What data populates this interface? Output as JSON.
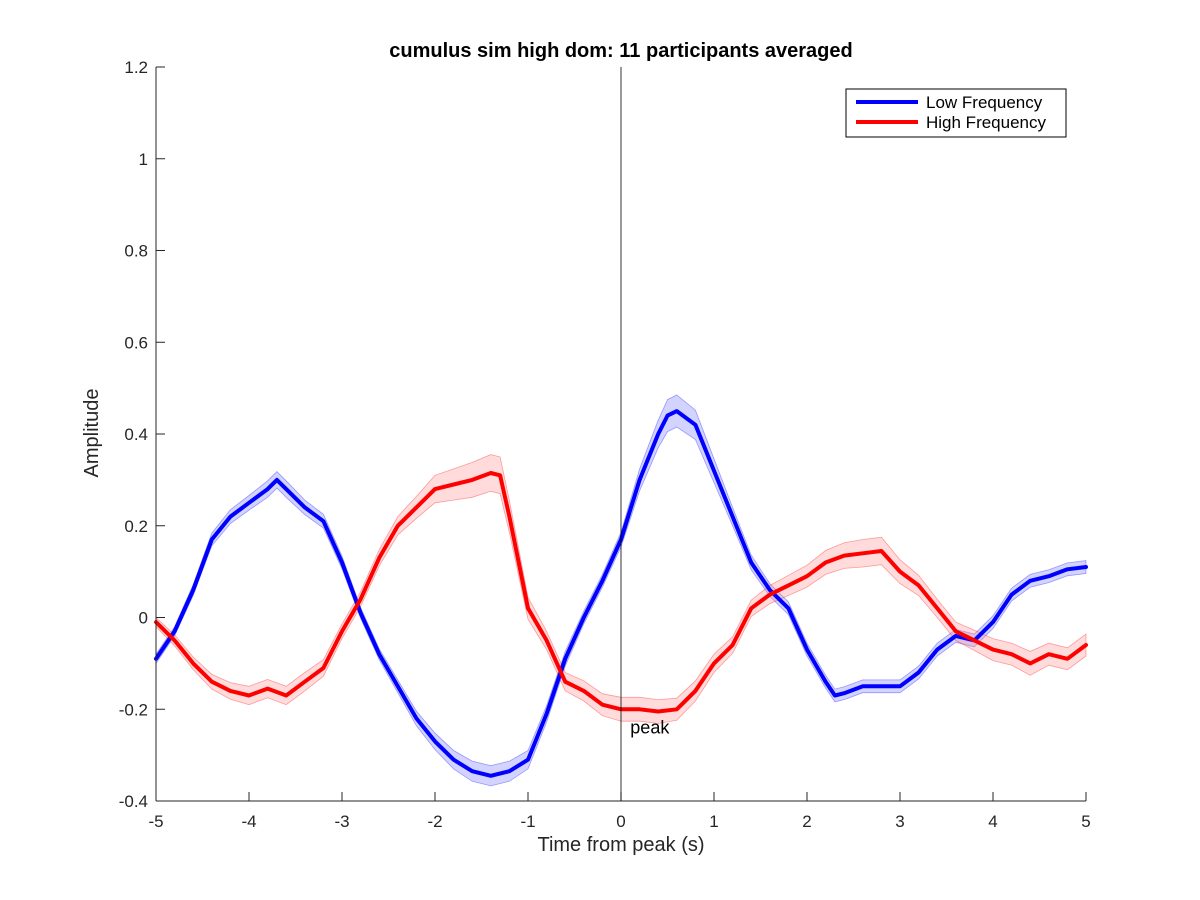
{
  "chart_data": {
    "type": "line",
    "title": "cumulus sim high dom: 11 participants averaged",
    "xlabel": "Time from peak (s)",
    "ylabel": "Amplitude",
    "xlim": [
      -5,
      5
    ],
    "ylim": [
      -0.4,
      1.2
    ],
    "xticks": [
      -5,
      -4,
      -3,
      -2,
      -1,
      0,
      1,
      2,
      3,
      4,
      5
    ],
    "yticks": [
      -0.4,
      -0.2,
      0,
      0.2,
      0.4,
      0.6,
      0.8,
      1,
      1.2
    ],
    "xtick_labels": [
      "-5",
      "-4",
      "-3",
      "-2",
      "-1",
      "0",
      "1",
      "2",
      "3",
      "4",
      "5"
    ],
    "ytick_labels": [
      "-0.4",
      "-0.2",
      "0",
      "0.2",
      "0.4",
      "0.6",
      "0.8",
      "1",
      "1.2"
    ],
    "grid": false,
    "legend_position": "top-right",
    "vline_x": 0,
    "annotation": {
      "text": "peak",
      "x": 0.1,
      "y": -0.24
    },
    "series": [
      {
        "name": "Low Frequency",
        "color": "#0000ff",
        "band_color": "#8080ff",
        "x": [
          -5,
          -4.8,
          -4.6,
          -4.4,
          -4.2,
          -4.0,
          -3.8,
          -3.7,
          -3.6,
          -3.4,
          -3.2,
          -3.0,
          -2.8,
          -2.6,
          -2.4,
          -2.2,
          -2.0,
          -1.8,
          -1.6,
          -1.4,
          -1.2,
          -1.0,
          -0.8,
          -0.6,
          -0.4,
          -0.2,
          0.0,
          0.2,
          0.4,
          0.5,
          0.6,
          0.8,
          1.0,
          1.2,
          1.4,
          1.6,
          1.8,
          2.0,
          2.2,
          2.3,
          2.4,
          2.6,
          2.8,
          3.0,
          3.2,
          3.4,
          3.6,
          3.8,
          4.0,
          4.2,
          4.4,
          4.6,
          4.8,
          5.0
        ],
        "y": [
          -0.09,
          -0.03,
          0.06,
          0.17,
          0.22,
          0.25,
          0.28,
          0.3,
          0.28,
          0.24,
          0.21,
          0.12,
          0.01,
          -0.08,
          -0.15,
          -0.22,
          -0.27,
          -0.31,
          -0.335,
          -0.345,
          -0.335,
          -0.31,
          -0.21,
          -0.09,
          0.0,
          0.08,
          0.17,
          0.3,
          0.4,
          0.44,
          0.45,
          0.42,
          0.32,
          0.22,
          0.12,
          0.06,
          0.02,
          -0.07,
          -0.14,
          -0.17,
          -0.165,
          -0.15,
          -0.15,
          -0.15,
          -0.12,
          -0.07,
          -0.04,
          -0.05,
          -0.01,
          0.05,
          0.08,
          0.09,
          0.105,
          0.11
        ],
        "err": [
          0.01,
          0.01,
          0.012,
          0.014,
          0.015,
          0.016,
          0.018,
          0.018,
          0.018,
          0.016,
          0.015,
          0.014,
          0.012,
          0.012,
          0.014,
          0.016,
          0.018,
          0.02,
          0.022,
          0.022,
          0.022,
          0.02,
          0.018,
          0.016,
          0.014,
          0.014,
          0.016,
          0.024,
          0.03,
          0.035,
          0.035,
          0.032,
          0.026,
          0.02,
          0.016,
          0.014,
          0.014,
          0.014,
          0.014,
          0.014,
          0.014,
          0.014,
          0.014,
          0.014,
          0.014,
          0.014,
          0.014,
          0.014,
          0.014,
          0.014,
          0.014,
          0.014,
          0.014,
          0.014
        ]
      },
      {
        "name": "High Frequency",
        "color": "#ff0000",
        "band_color": "#ff9999",
        "x": [
          -5,
          -4.8,
          -4.6,
          -4.4,
          -4.2,
          -4.0,
          -3.8,
          -3.6,
          -3.4,
          -3.2,
          -3.0,
          -2.8,
          -2.6,
          -2.4,
          -2.2,
          -2.0,
          -1.8,
          -1.6,
          -1.4,
          -1.3,
          -1.2,
          -1.0,
          -0.8,
          -0.6,
          -0.4,
          -0.2,
          0.0,
          0.2,
          0.4,
          0.6,
          0.8,
          1.0,
          1.2,
          1.4,
          1.6,
          1.8,
          2.0,
          2.2,
          2.4,
          2.6,
          2.8,
          3.0,
          3.2,
          3.4,
          3.6,
          3.8,
          4.0,
          4.2,
          4.4,
          4.6,
          4.8,
          5.0
        ],
        "y": [
          -0.01,
          -0.05,
          -0.1,
          -0.14,
          -0.16,
          -0.17,
          -0.155,
          -0.17,
          -0.14,
          -0.11,
          -0.03,
          0.04,
          0.13,
          0.2,
          0.24,
          0.28,
          0.29,
          0.3,
          0.315,
          0.31,
          0.22,
          0.02,
          -0.05,
          -0.14,
          -0.16,
          -0.19,
          -0.2,
          -0.2,
          -0.205,
          -0.2,
          -0.16,
          -0.1,
          -0.06,
          0.02,
          0.05,
          0.07,
          0.09,
          0.12,
          0.135,
          0.14,
          0.145,
          0.1,
          0.07,
          0.02,
          -0.03,
          -0.05,
          -0.07,
          -0.08,
          -0.1,
          -0.08,
          -0.09,
          -0.06
        ],
        "err": [
          0.01,
          0.012,
          0.014,
          0.016,
          0.018,
          0.02,
          0.02,
          0.02,
          0.02,
          0.018,
          0.016,
          0.016,
          0.018,
          0.02,
          0.024,
          0.03,
          0.034,
          0.038,
          0.04,
          0.04,
          0.035,
          0.024,
          0.02,
          0.02,
          0.022,
          0.024,
          0.026,
          0.026,
          0.026,
          0.024,
          0.022,
          0.02,
          0.018,
          0.018,
          0.02,
          0.022,
          0.024,
          0.026,
          0.028,
          0.03,
          0.03,
          0.026,
          0.022,
          0.02,
          0.02,
          0.022,
          0.024,
          0.024,
          0.026,
          0.024,
          0.024,
          0.024
        ]
      }
    ]
  }
}
